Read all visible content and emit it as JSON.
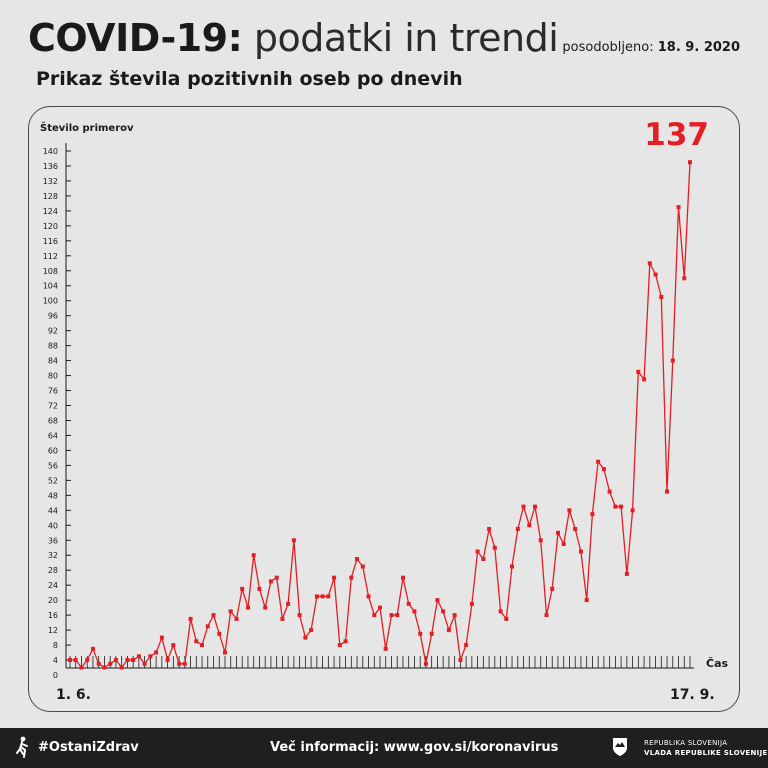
{
  "header": {
    "title_bold": "COVID-19:",
    "title_light": "podatki in trendi",
    "updated_label": "posodobljeno:",
    "updated_date": "18. 9. 2020"
  },
  "subtitle": "Prikaz števila pozitivnih oseb po dnevih",
  "chart_data": {
    "type": "line",
    "title": "",
    "ylabel": "Število primerov",
    "xlabel": "Čas",
    "x_start_label": "1. 6.",
    "x_end_label": "17. 9.",
    "ylim": [
      0,
      140
    ],
    "yticks": [
      0,
      4,
      8,
      12,
      16,
      20,
      24,
      28,
      32,
      36,
      40,
      44,
      48,
      52,
      56,
      60,
      64,
      68,
      72,
      76,
      80,
      84,
      88,
      92,
      96,
      100,
      104,
      108,
      112,
      116,
      120,
      124,
      128,
      132,
      136,
      140
    ],
    "grid": false,
    "highlight_value": "137",
    "line_color": "#e31e24",
    "series": [
      {
        "values": [
          4,
          4,
          2,
          4,
          7,
          3,
          2,
          3,
          4,
          2,
          4,
          4,
          5,
          3,
          5,
          6,
          10,
          4,
          8,
          3,
          3,
          15,
          9,
          8,
          13,
          16,
          11,
          6,
          17,
          15,
          23,
          18,
          32,
          23,
          18,
          25,
          26,
          15,
          19,
          36,
          16,
          10,
          12,
          21,
          21,
          21,
          26,
          8,
          9,
          26,
          31,
          29,
          21,
          16,
          18,
          7,
          16,
          16,
          26,
          19,
          17,
          11,
          3,
          11,
          20,
          17,
          12,
          16,
          4,
          8,
          19,
          33,
          31,
          39,
          34,
          17,
          15,
          29,
          39,
          45,
          40,
          45,
          36,
          16,
          23,
          38,
          35,
          44,
          39,
          33,
          20,
          43,
          57,
          55,
          49,
          45,
          45,
          27,
          44,
          81,
          79,
          110,
          107,
          101,
          49,
          84,
          125,
          106,
          137
        ]
      }
    ]
  },
  "footer": {
    "hashtag": "#OstaniZdrav",
    "info_label": "Več informacij: www.gov.si/koronavirus",
    "gov_line1": "REPUBLIKA SLOVENIJA",
    "gov_line2": "VLADA REPUBLIKE SLOVENIJE"
  }
}
